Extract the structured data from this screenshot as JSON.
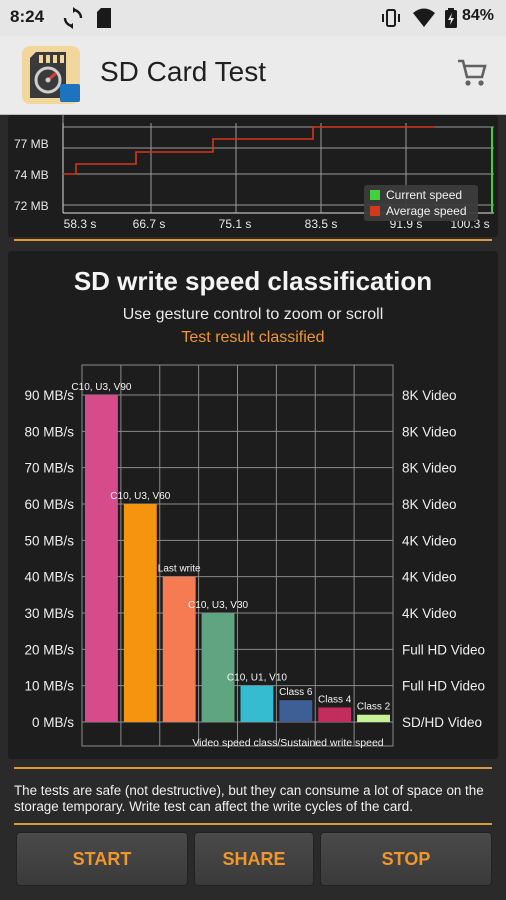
{
  "status_bar": {
    "time": "8:24",
    "battery": "84%"
  },
  "app_bar": {
    "title": "SD Card Test"
  },
  "live_chart": {
    "y_ticks": [
      "77 MB",
      "74 MB",
      "72 MB"
    ],
    "x_ticks": [
      "58.3 s",
      "66.7 s",
      "75.1 s",
      "83.5 s",
      "91.9 s",
      "100.3 s"
    ],
    "legend": [
      {
        "label": "Current speed",
        "color": "#3fd13f"
      },
      {
        "label": "Average speed",
        "color": "#d13a1a"
      }
    ]
  },
  "classification": {
    "title": "SD write speed classification",
    "subtitle": "Use gesture control to zoom or scroll",
    "result": "Test result classified"
  },
  "chart_data": {
    "type": "bar",
    "title": "SD write speed classification",
    "xlabel": "Video speed class/Sustained write speed",
    "ylim": [
      0,
      90
    ],
    "y_ticks": [
      "90 MB/s",
      "80 MB/s",
      "70 MB/s",
      "60 MB/s",
      "50 MB/s",
      "40 MB/s",
      "30 MB/s",
      "20 MB/s",
      "10 MB/s",
      "0 MB/s"
    ],
    "right_ticks": [
      "8K Video",
      "8K Video",
      "8K Video",
      "8K Video",
      "4K Video",
      "4K Video",
      "4K Video",
      "Full HD Video",
      "Full HD Video",
      "SD/HD Video"
    ],
    "bars": [
      {
        "label": "C10, U3, V90",
        "value": 90,
        "color": "#d64c8b"
      },
      {
        "label": "C10, U3, V60",
        "value": 60,
        "color": "#f5940f"
      },
      {
        "label": "Last write",
        "value": 40,
        "color": "#f77b52"
      },
      {
        "label": "C10, U3, V30",
        "value": 30,
        "color": "#5fa582"
      },
      {
        "label": "C10, U1, V10",
        "value": 10,
        "color": "#36bcd0"
      },
      {
        "label": "Class 6",
        "value": 6,
        "color": "#3d5f96"
      },
      {
        "label": "Class 4",
        "value": 4,
        "color": "#c22d5d"
      },
      {
        "label": "Class 2",
        "value": 2,
        "color": "#c6f29a"
      }
    ]
  },
  "disclaimer": "The tests are safe (not destructive), but they can consume a lot of space on the storage temporary. Write test can affect the write cycles of the card.",
  "buttons": {
    "start": "START",
    "share": "SHARE",
    "stop": "STOP"
  }
}
